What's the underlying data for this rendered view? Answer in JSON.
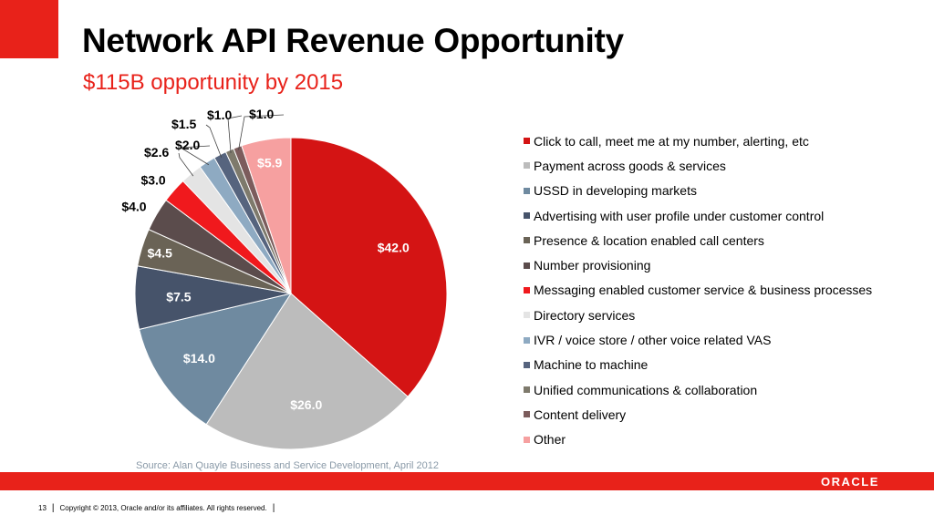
{
  "slide": {
    "title": "Network API Revenue Opportunity",
    "subtitle": "$115B opportunity by 2015",
    "source": "Source: Alan Quayle Business and Service Development, April 2012",
    "logo_text": "ORACLE",
    "page_number": "13",
    "copyright": "Copyright © 2013, Oracle and/or its affiliates. All rights reserved."
  },
  "colors": {
    "accent": "#e8221a"
  },
  "chart_data": {
    "type": "pie",
    "title": "",
    "legend_position": "right",
    "slices": [
      {
        "label": "Click to call, meet me at my number, alerting, etc",
        "value": 42.0,
        "display": "$42.0",
        "color": "#d41414"
      },
      {
        "label": "Payment across goods & services",
        "value": 26.0,
        "display": "$26.0",
        "color": "#bcbcbc"
      },
      {
        "label": "USSD in developing markets",
        "value": 14.0,
        "display": "$14.0",
        "color": "#6f8aa0"
      },
      {
        "label": "Advertising with user profile under customer control",
        "value": 7.5,
        "display": "$7.5",
        "color": "#46536a"
      },
      {
        "label": "Presence & location enabled call centers",
        "value": 4.5,
        "display": "$4.5",
        "color": "#6a6356"
      },
      {
        "label": "Number provisioning",
        "value": 4.0,
        "display": "$4.0",
        "color": "#5b4c4c"
      },
      {
        "label": "Messaging enabled customer service & business processes",
        "value": 3.0,
        "display": "$3.0",
        "color": "#f0191d"
      },
      {
        "label": "Directory services",
        "value": 2.6,
        "display": "$2.6",
        "color": "#e4e4e4"
      },
      {
        "label": "IVR / voice store / other voice related VAS",
        "value": 2.0,
        "display": "$2.0",
        "color": "#8eaac2"
      },
      {
        "label": "Machine to machine",
        "value": 1.5,
        "display": "$1.5",
        "color": "#56647e"
      },
      {
        "label": "Unified communications & collaboration",
        "value": 1.0,
        "display": "$1.0",
        "color": "#7e7a6c"
      },
      {
        "label": "Content delivery",
        "value": 1.0,
        "display": "$1.0",
        "color": "#7c5c5c"
      },
      {
        "label": "Other",
        "value": 5.9,
        "display": "$5.9",
        "color": "#f6a0a0"
      }
    ]
  }
}
